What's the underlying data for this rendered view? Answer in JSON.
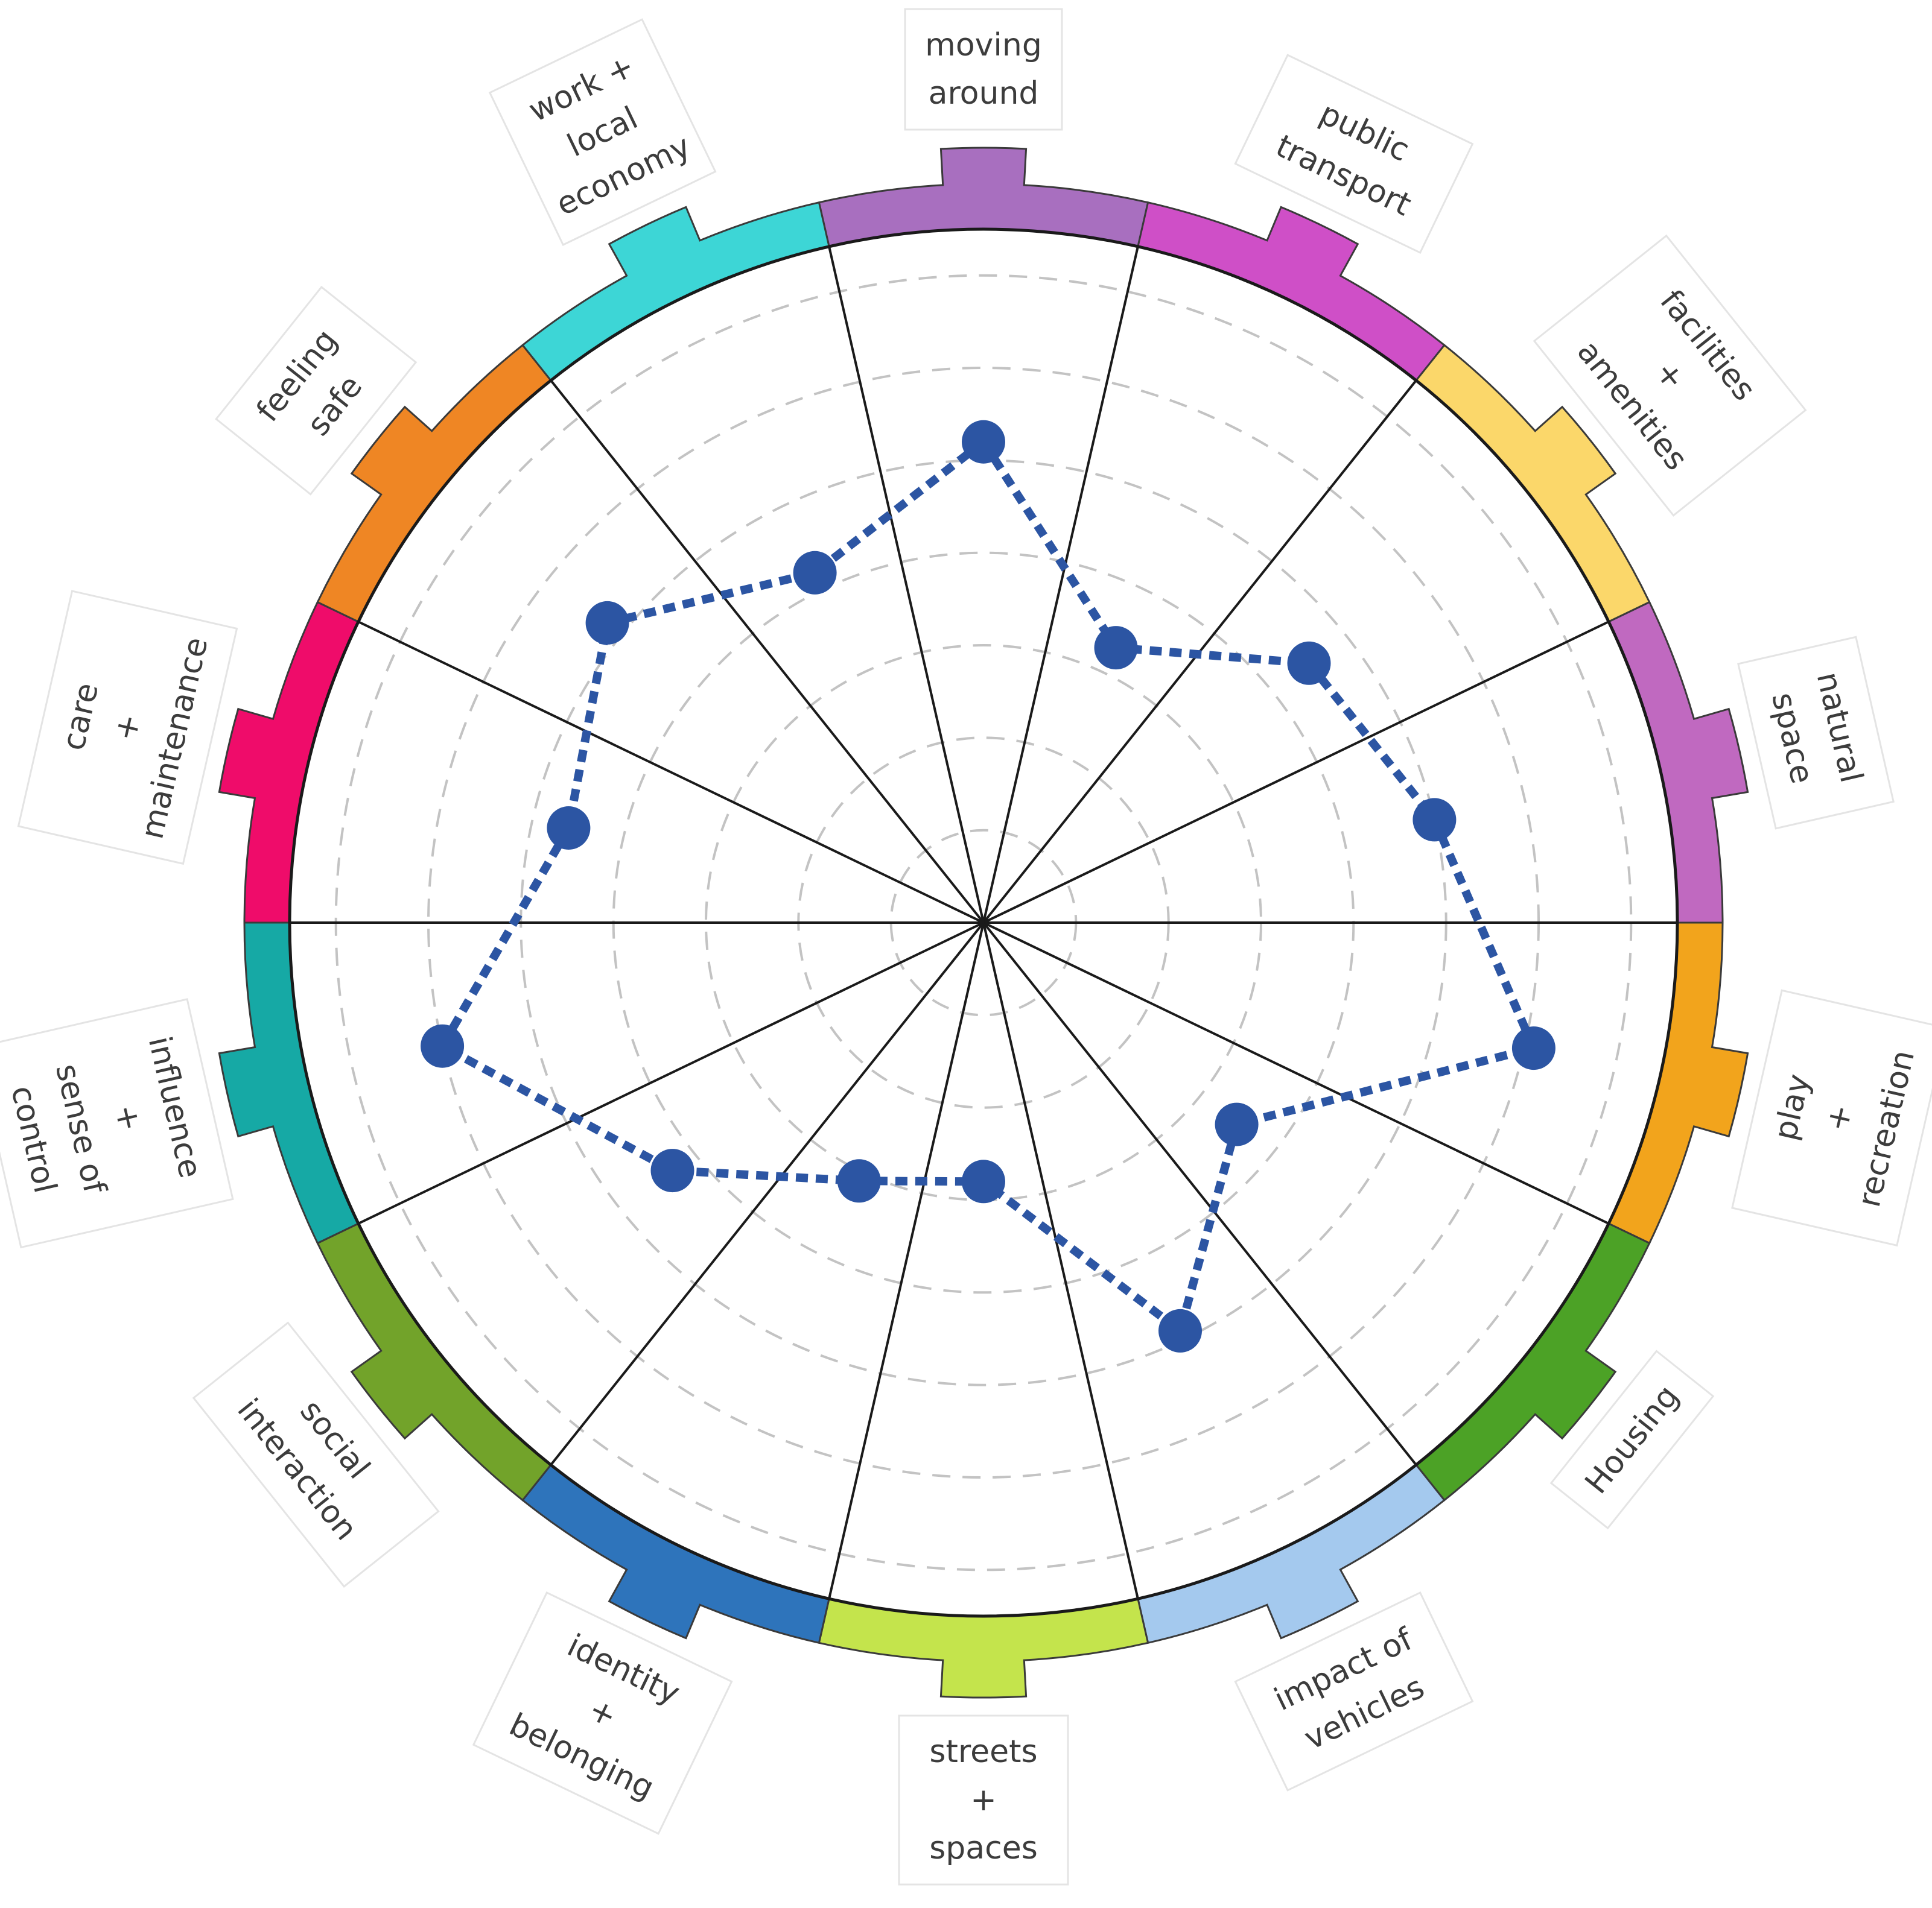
{
  "chart_data": {
    "type": "radar",
    "scale": {
      "min": 0,
      "max": 7,
      "rings": 7
    },
    "grid": "dashed concentric rings",
    "categories": [
      {
        "lines": [
          "moving",
          "around"
        ],
        "color": "#a86fbf"
      },
      {
        "lines": [
          "public",
          "transport"
        ],
        "color": "#cf4fc7"
      },
      {
        "lines": [
          "facilities",
          "+",
          "amenities"
        ],
        "color": "#fbd76a"
      },
      {
        "lines": [
          "natural",
          "space"
        ],
        "color": "#c069c0"
      },
      {
        "lines": [
          "play",
          "+",
          "recreation"
        ],
        "color": "#f2a41c"
      },
      {
        "lines": [
          "Housing"
        ],
        "color": "#4ca226"
      },
      {
        "lines": [
          "impact of",
          "vehicles"
        ],
        "color": "#a4c9ee"
      },
      {
        "lines": [
          "streets",
          "+",
          "spaces"
        ],
        "color": "#c4e44c"
      },
      {
        "lines": [
          "identity",
          "+",
          "belonging"
        ],
        "color": "#2e74bb"
      },
      {
        "lines": [
          "social",
          "interaction"
        ],
        "color": "#72a32a"
      },
      {
        "lines": [
          "influence",
          "+",
          "sense of",
          "control"
        ],
        "color": "#16a9a5"
      },
      {
        "lines": [
          "care",
          "+",
          "maintenance"
        ],
        "color": "#ef0c6a"
      },
      {
        "lines": [
          "feeling",
          "safe"
        ],
        "color": "#ef8624"
      },
      {
        "lines": [
          "work +",
          "local",
          "economy"
        ],
        "color": "#3dd6d6"
      }
    ],
    "series": [
      {
        "values": [
          5.2,
          3.3,
          4.5,
          5.0,
          6.1,
          3.5,
          4.9,
          2.8,
          3.1,
          4.3,
          6.0,
          4.6,
          5.2,
          4.2
        ],
        "color": "#2c55a3"
      }
    ]
  }
}
